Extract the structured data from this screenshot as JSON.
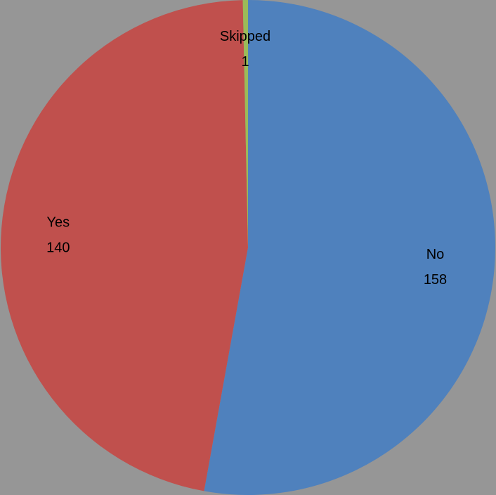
{
  "chart_data": {
    "type": "pie",
    "slices": [
      {
        "label": "No",
        "value": 158,
        "color": "#4F81BD"
      },
      {
        "label": "Yes",
        "value": 140,
        "color": "#C0504D"
      },
      {
        "label": "Skipped",
        "value": 1,
        "color": "#9BBB59"
      }
    ],
    "start": "12 o'clock",
    "direction": "clockwise",
    "data_labels": "category name and value",
    "legend": "none",
    "background_color": "#969696"
  }
}
